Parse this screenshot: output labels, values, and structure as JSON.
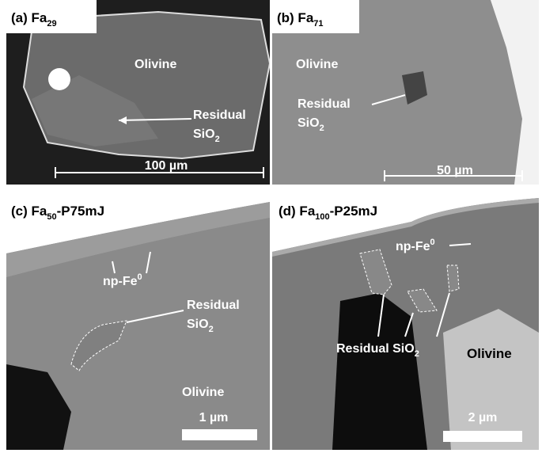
{
  "panels": [
    {
      "label": "(a) Fa",
      "label_sub": "29",
      "olivine": "Olivine",
      "residual": "Residual",
      "sio": "SiO",
      "sio_sub": "2",
      "scale_bar": "100 µm"
    },
    {
      "label": "(b) Fa",
      "label_sub": "71",
      "olivine": "Olivine",
      "residual": "Residual",
      "sio": "SiO",
      "sio_sub": "2",
      "scale_bar": "50 µm"
    },
    {
      "label": "(c) Fa",
      "label_sub": "50",
      "label_suffix": "-P75mJ",
      "np_fe": "np-Fe",
      "np_fe_sup": "0",
      "residual": "Residual",
      "sio": "SiO",
      "sio_sub": "2",
      "olivine": "Olivine",
      "scale_bar": "1 µm"
    },
    {
      "label": "(d) Fa",
      "label_sub": "100",
      "label_suffix": "-P25mJ",
      "np_fe": "np-Fe",
      "np_fe_sup": "0",
      "residual_sio": "Residual SiO",
      "sio_sub": "2",
      "olivine": "Olivine",
      "scale_bar": "2 µm"
    }
  ]
}
